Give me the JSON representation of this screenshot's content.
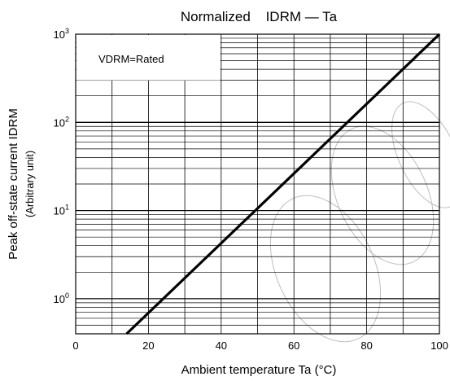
{
  "chart_data": {
    "type": "line",
    "title": {
      "prefix": "Normalized",
      "formula": "IDRM — Ta"
    },
    "xlabel": "Ambient temperature Ta (°C)",
    "ylabel": "Peak off-state current IDRM",
    "ylabel_sub": "(Arbitrary unit)",
    "annotation": "VDRM=Rated",
    "x_scale": "linear",
    "y_scale": "log",
    "xlim": [
      0,
      100
    ],
    "ylim": [
      0.4,
      1000
    ],
    "x_ticks": [
      0,
      20,
      40,
      60,
      80,
      100
    ],
    "x_tick_labels": [
      "0",
      "20",
      "40",
      "60",
      "80",
      "100"
    ],
    "y_ticks": [
      {
        "value": 1,
        "base": "10",
        "exp": "0"
      },
      {
        "value": 10,
        "base": "10",
        "exp": "1"
      },
      {
        "value": 100,
        "base": "10",
        "exp": "2"
      },
      {
        "value": 1000,
        "base": "10",
        "exp": "3"
      }
    ],
    "grid": true,
    "line_color": "#000000",
    "series": [
      {
        "x": [
          14,
          100
        ],
        "y": [
          0.4,
          1000
        ]
      }
    ]
  },
  "watermark": "ReCo"
}
